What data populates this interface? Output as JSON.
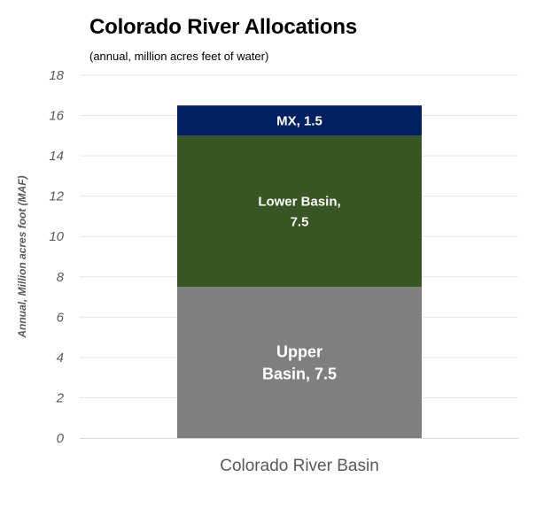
{
  "chart_data": {
    "type": "bar",
    "stacked": true,
    "title": "Colorado River Allocations",
    "subtitle": "(annual, million acres feet of water)",
    "xlabel": "",
    "ylabel": "Annual, Million acres foot (MAF)",
    "categories": [
      "Colorado River Basin"
    ],
    "ylim": [
      0,
      18
    ],
    "yticks": [
      0,
      2,
      4,
      6,
      8,
      10,
      12,
      14,
      16,
      18
    ],
    "grid": true,
    "legend": "none",
    "series": [
      {
        "label_lines": [
          "Upper",
          "Basin, 7.5"
        ],
        "values": [
          7.5
        ],
        "color": "#7f7f7f"
      },
      {
        "label_lines": [
          "Lower Basin,",
          "7.5"
        ],
        "values": [
          7.5
        ],
        "color": "#375623"
      },
      {
        "label_lines": [
          "MX, 1.5"
        ],
        "values": [
          1.5
        ],
        "color": "#002060"
      }
    ],
    "colors": {
      "grid": "#e6e6e6",
      "axis": "#d9d9d9",
      "tick_text": "#595959",
      "label_text": "#ffffff"
    }
  }
}
